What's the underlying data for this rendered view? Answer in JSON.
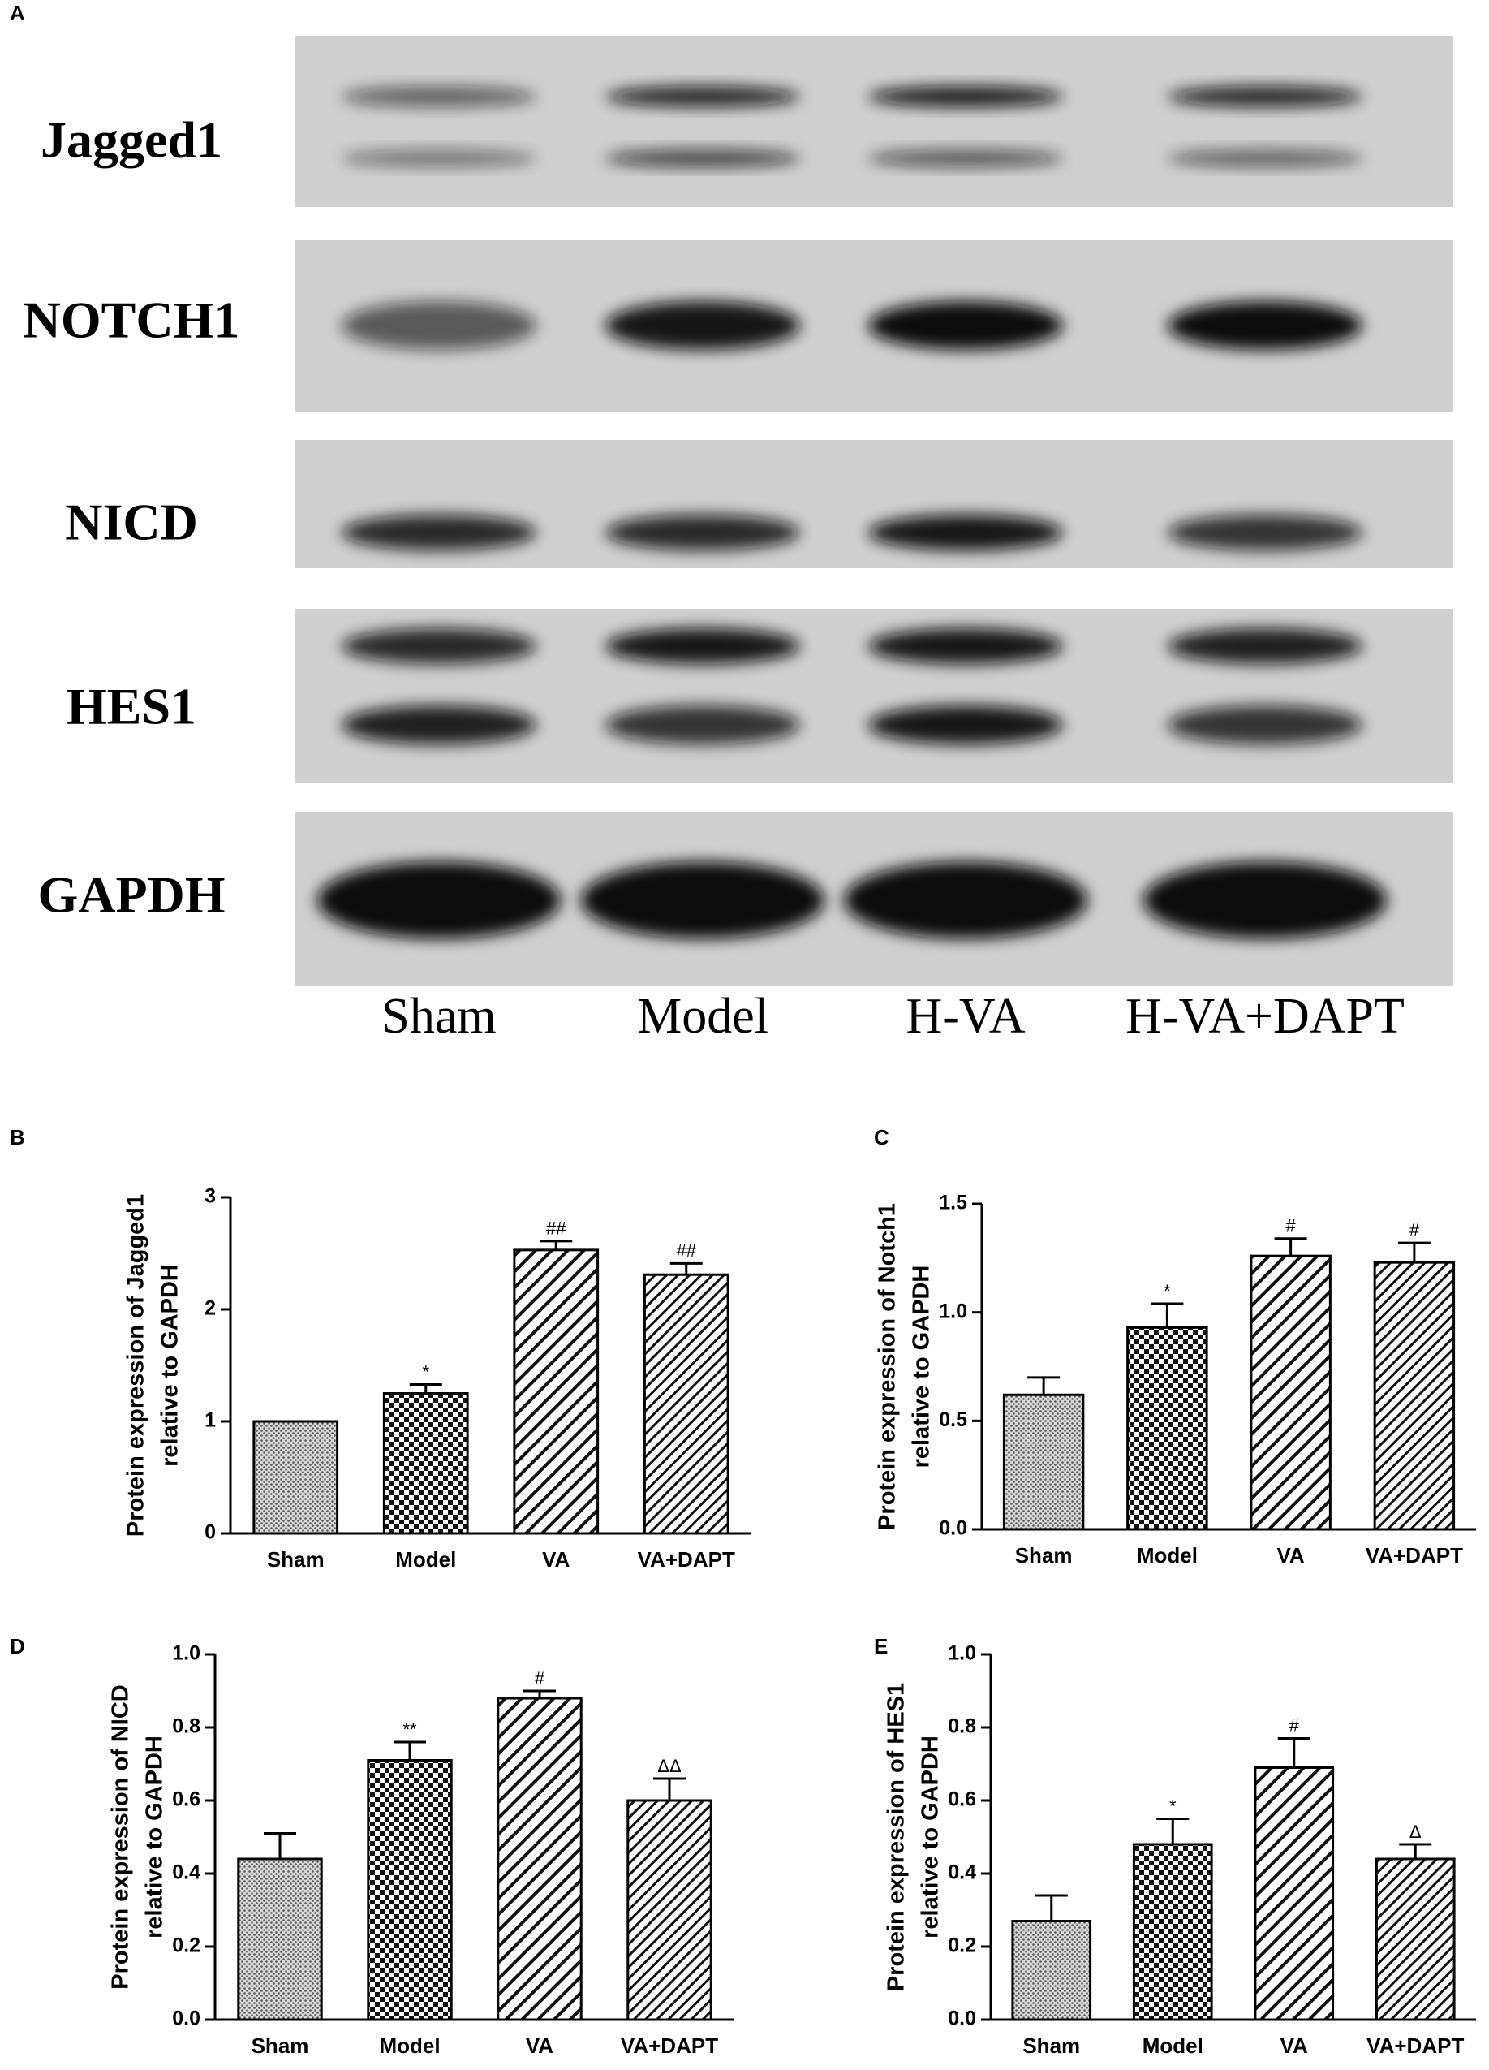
{
  "panel_a": {
    "label": "A",
    "proteins": [
      "Jagged1",
      "NOTCH1",
      "NICD",
      "HES1",
      "GAPDH"
    ],
    "lanes": [
      "Sham",
      "Model",
      "H-VA",
      "H-VA+DAPT"
    ]
  },
  "chart_data": [
    {
      "type": "bar",
      "panel": "B",
      "ylabel": [
        "Protein expression  of Jagged1",
        "relative to GAPDH"
      ],
      "categories": [
        "Sham",
        "Model",
        "VA",
        "VA+DAPT"
      ],
      "values": [
        1.0,
        1.25,
        2.53,
        2.31
      ],
      "errors": [
        0,
        0.08,
        0.08,
        0.1
      ],
      "annotations": [
        null,
        "*",
        "##",
        "##"
      ],
      "patterns": [
        "dots",
        "checker",
        "hatch",
        "hatch-fine"
      ],
      "ylim": [
        0,
        3
      ],
      "yticks": [
        0,
        1,
        2,
        3
      ]
    },
    {
      "type": "bar",
      "panel": "C",
      "ylabel": [
        "Protein expression  of Notch1",
        "relative to GAPDH"
      ],
      "categories": [
        "Sham",
        "Model",
        "VA",
        "VA+DAPT"
      ],
      "values": [
        0.62,
        0.93,
        1.26,
        1.23
      ],
      "errors": [
        0.08,
        0.11,
        0.08,
        0.09
      ],
      "annotations": [
        null,
        "*",
        "#",
        "#"
      ],
      "patterns": [
        "dots",
        "checker",
        "hatch",
        "hatch-fine"
      ],
      "ylim": [
        0,
        1.5
      ],
      "yticks": [
        {
          "value": 0,
          "label": "0.0"
        },
        0.5,
        {
          "value": 1,
          "label": "1.0"
        },
        1.5
      ]
    },
    {
      "type": "bar",
      "panel": "D",
      "ylabel": [
        "Protein expression  of NICD",
        "relative to GAPDH"
      ],
      "categories": [
        "Sham",
        "Model",
        "VA",
        "VA+DAPT"
      ],
      "values": [
        0.44,
        0.71,
        0.88,
        0.6
      ],
      "errors": [
        0.07,
        0.05,
        0.02,
        0.06
      ],
      "annotations": [
        null,
        "**",
        "#",
        "ΔΔ"
      ],
      "patterns": [
        "dots",
        "checker",
        "hatch",
        "hatch-fine"
      ],
      "ylim": [
        0,
        1
      ],
      "yticks": [
        {
          "value": 0,
          "label": "0.0"
        },
        0.2,
        0.4,
        0.6,
        0.8,
        {
          "value": 1,
          "label": "1.0"
        }
      ]
    },
    {
      "type": "bar",
      "panel": "E",
      "ylabel": [
        "Protein expression  of HES1",
        "relative to GAPDH"
      ],
      "categories": [
        "Sham",
        "Model",
        "VA",
        "VA+DAPT"
      ],
      "values": [
        0.27,
        0.48,
        0.69,
        0.44
      ],
      "errors": [
        0.07,
        0.07,
        0.08,
        0.04
      ],
      "annotations": [
        null,
        "*",
        "#",
        "Δ"
      ],
      "patterns": [
        "dots",
        "checker",
        "hatch",
        "hatch-fine"
      ],
      "ylim": [
        0,
        1
      ],
      "yticks": [
        {
          "value": 0,
          "label": "0.0"
        },
        0.2,
        0.4,
        0.6,
        0.8,
        {
          "value": 1,
          "label": "1.0"
        }
      ]
    }
  ]
}
